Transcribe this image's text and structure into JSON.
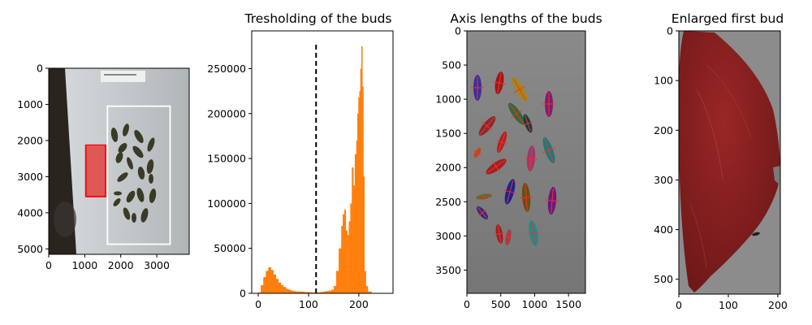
{
  "chart_data": [
    {
      "type": "image",
      "title": "",
      "xlim": [
        0,
        3900
      ],
      "ylim": [
        5150,
        0
      ],
      "xticks": [
        0,
        1000,
        2000,
        3000
      ],
      "yticks": [
        0,
        1000,
        2000,
        3000,
        4000,
        5000
      ],
      "image_content": "photo of a sheet of paper with twenty dark green leaf buds, with a red box over a reference card and a white box around the buds",
      "annotations": [
        {
          "shape": "rectangle",
          "color": "#ff0000",
          "x": [
            1030,
            1580
          ],
          "y": [
            2130,
            3550
          ]
        },
        {
          "shape": "rectangle",
          "color": "#ffffff",
          "x": [
            1630,
            3370
          ],
          "y": [
            1050,
            4870
          ]
        }
      ]
    },
    {
      "type": "histogram",
      "title": "Tresholding of the buds",
      "xlim": [
        -13,
        268
      ],
      "ylim": [
        0,
        292000
      ],
      "xticks": [
        0,
        100,
        200
      ],
      "yticks": [
        0,
        50000,
        100000,
        150000,
        200000,
        250000
      ],
      "bar_color": "#ff7f0e",
      "threshold": {
        "x": 115,
        "y_max": 277000,
        "style": "dashed",
        "color": "#000000"
      },
      "bins": [
        0,
        5,
        10,
        15,
        20,
        25,
        30,
        35,
        40,
        45,
        50,
        55,
        60,
        65,
        70,
        75,
        80,
        85,
        90,
        95,
        100,
        105,
        110,
        115,
        120,
        125,
        130,
        135,
        140,
        145,
        150,
        155,
        160,
        165,
        168,
        171,
        174,
        177,
        180,
        183,
        186,
        189,
        192,
        195,
        197,
        199,
        201,
        203,
        205,
        207,
        209,
        211,
        214,
        218,
        225
      ],
      "counts": [
        1000,
        9000,
        18000,
        25000,
        29000,
        26000,
        21000,
        16000,
        12000,
        9000,
        7000,
        5000,
        4000,
        3000,
        2500,
        2000,
        2000,
        1800,
        1600,
        1400,
        1200,
        1100,
        1000,
        1000,
        1200,
        1500,
        2000,
        2500,
        3000,
        4000,
        8000,
        25000,
        50000,
        75000,
        88000,
        93000,
        70000,
        65000,
        80000,
        100000,
        140000,
        120000,
        155000,
        170000,
        200000,
        218000,
        225000,
        250000,
        275000,
        230000,
        130000,
        25000,
        8000,
        2000
      ]
    },
    {
      "type": "image",
      "title": "Axis lengths of the buds",
      "xlim": [
        0,
        1750
      ],
      "ylim": [
        3840,
        0
      ],
      "xticks": [
        0,
        500,
        1000,
        1500
      ],
      "yticks": [
        0,
        500,
        1000,
        1500,
        2000,
        2500,
        3000,
        3500
      ],
      "image_content": "grey background with twenty segmented buds in distinct colours, each with red lines showing its major and minor axes"
    },
    {
      "type": "image",
      "title": "Enlarged first bud",
      "xlim": [
        0,
        205
      ],
      "ylim": [
        530,
        0
      ],
      "xticks": [
        0,
        100,
        200
      ],
      "yticks": [
        0,
        100,
        200,
        300,
        400,
        500
      ],
      "image_content": "close-up of a single bud tinted dark red on a grey background"
    }
  ]
}
